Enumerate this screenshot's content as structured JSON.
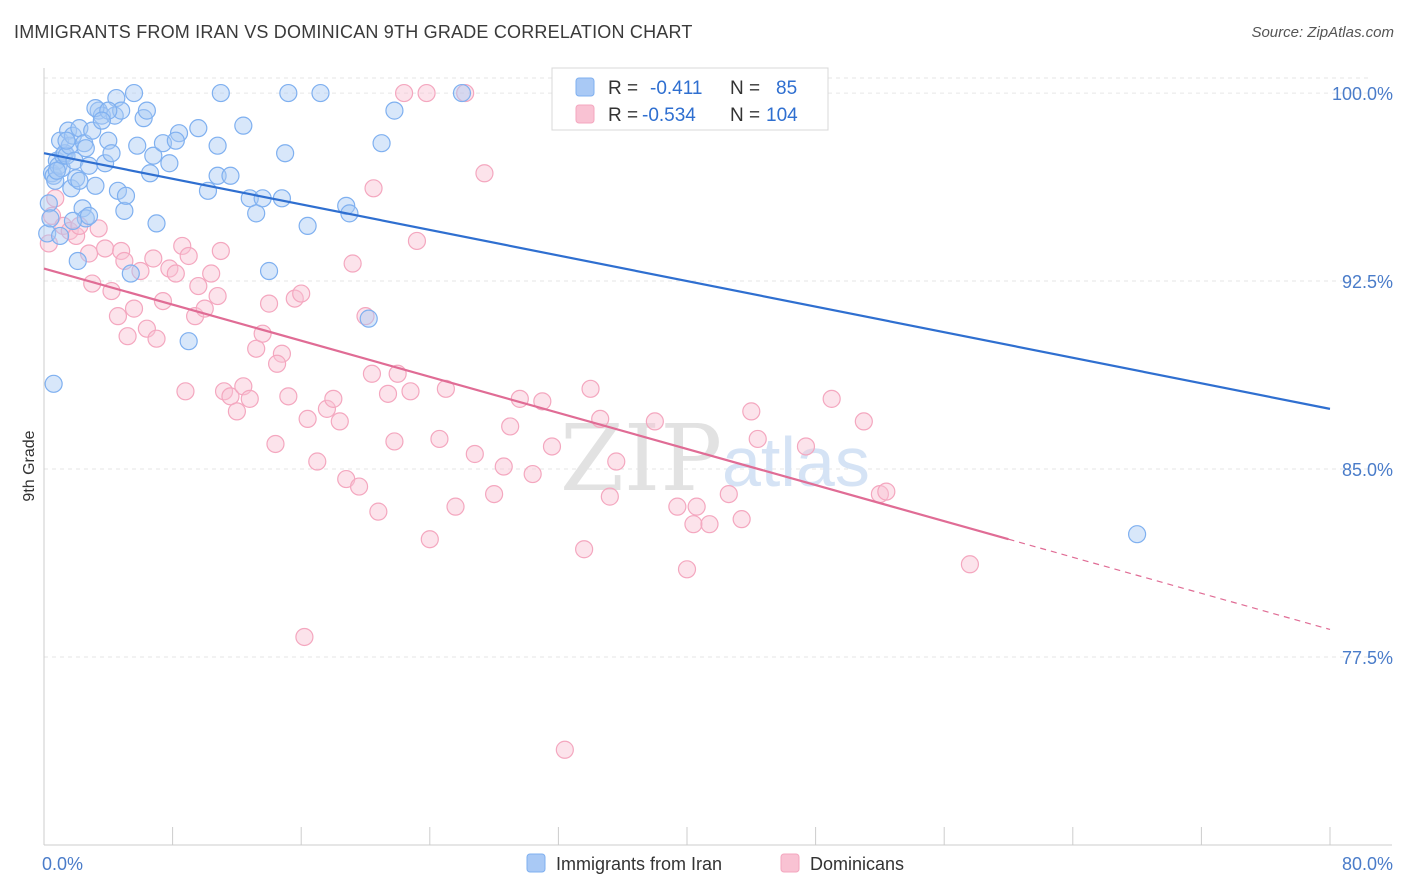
{
  "header": {
    "title": "IMMIGRANTS FROM IRAN VS DOMINICAN 9TH GRADE CORRELATION CHART",
    "source": "Source: ZipAtlas.com"
  },
  "watermark": {
    "zip": "ZIP",
    "atlas": "atlas"
  },
  "legend": {
    "rows": [
      {
        "r_label": "R =",
        "r_value": "-0.411",
        "n_label": "N =",
        "n_value": "85",
        "color": "#7fb0f0"
      },
      {
        "r_label": "R =",
        "r_value": "-0.534",
        "n_label": "N =",
        "n_value": "104",
        "color": "#f4a7bf"
      }
    ]
  },
  "bottom_legend": {
    "items": [
      {
        "label": "Immigrants from Iran",
        "color": "#a9c9f5"
      },
      {
        "label": "Dominicans",
        "color": "#f9c2d3"
      }
    ]
  },
  "chart_data": {
    "type": "scatter",
    "title": "IMMIGRANTS FROM IRAN VS DOMINICAN 9TH GRADE CORRELATION CHART",
    "xlabel": "",
    "ylabel": "9th Grade",
    "xlim": [
      0,
      80
    ],
    "ylim": [
      70.0,
      101.0
    ],
    "x_tick_labels": [
      "0.0%",
      "80.0%"
    ],
    "y_tick_labels": [
      "100.0%",
      "92.5%",
      "85.0%",
      "77.5%"
    ],
    "y_ticks": [
      100.0,
      92.5,
      85.0,
      77.5
    ],
    "grid": true,
    "series": [
      {
        "name": "Immigrants from Iran",
        "color": "#7fb0f0",
        "trend": {
          "x": [
            0,
            80
          ],
          "y": [
            97.6,
            87.4
          ]
        },
        "points": [
          [
            0.2,
            94.4
          ],
          [
            0.3,
            95.6
          ],
          [
            0.4,
            95.0
          ],
          [
            0.5,
            96.8
          ],
          [
            0.6,
            96.7
          ],
          [
            0.7,
            96.5
          ],
          [
            0.8,
            97.3
          ],
          [
            0.9,
            97.1
          ],
          [
            1.0,
            98.1
          ],
          [
            1.1,
            97.0
          ],
          [
            1.2,
            97.5
          ],
          [
            1.3,
            97.6
          ],
          [
            1.4,
            97.5
          ],
          [
            1.5,
            98.5
          ],
          [
            1.6,
            97.9
          ],
          [
            1.7,
            96.2
          ],
          [
            1.8,
            98.3
          ],
          [
            1.9,
            97.3
          ],
          [
            2.0,
            96.6
          ],
          [
            2.1,
            93.3
          ],
          [
            2.2,
            98.6
          ],
          [
            2.4,
            95.4
          ],
          [
            2.5,
            98.0
          ],
          [
            2.6,
            95.0
          ],
          [
            2.8,
            97.1
          ],
          [
            3.0,
            98.5
          ],
          [
            3.2,
            96.3
          ],
          [
            3.4,
            99.3
          ],
          [
            3.6,
            99.1
          ],
          [
            3.8,
            97.2
          ],
          [
            4.0,
            98.1
          ],
          [
            4.2,
            97.6
          ],
          [
            4.4,
            99.1
          ],
          [
            4.5,
            99.8
          ],
          [
            4.6,
            96.1
          ],
          [
            4.8,
            99.3
          ],
          [
            5.0,
            95.3
          ],
          [
            5.1,
            95.9
          ],
          [
            5.4,
            92.8
          ],
          [
            5.8,
            97.9
          ],
          [
            6.2,
            99.0
          ],
          [
            6.6,
            96.8
          ],
          [
            6.8,
            97.5
          ],
          [
            7.0,
            94.8
          ],
          [
            7.4,
            98.0
          ],
          [
            7.8,
            97.2
          ],
          [
            8.4,
            98.4
          ],
          [
            9.0,
            90.1
          ],
          [
            9.6,
            98.6
          ],
          [
            10.2,
            96.1
          ],
          [
            10.8,
            96.7
          ],
          [
            10.8,
            97.9
          ],
          [
            11.0,
            100.0
          ],
          [
            11.6,
            96.7
          ],
          [
            12.4,
            98.7
          ],
          [
            12.8,
            95.8
          ],
          [
            13.2,
            95.2
          ],
          [
            13.6,
            95.8
          ],
          [
            14.0,
            92.9
          ],
          [
            14.8,
            95.8
          ],
          [
            15.0,
            97.6
          ],
          [
            15.2,
            100.0
          ],
          [
            16.4,
            94.7
          ],
          [
            17.2,
            100.0
          ],
          [
            18.8,
            95.5
          ],
          [
            19.0,
            95.2
          ],
          [
            20.2,
            91.0
          ],
          [
            21.0,
            98.0
          ],
          [
            21.8,
            99.3
          ],
          [
            26.0,
            100.0
          ],
          [
            68.0,
            82.4
          ],
          [
            0.6,
            88.4
          ],
          [
            1.0,
            94.3
          ],
          [
            2.8,
            95.1
          ],
          [
            3.2,
            99.4
          ],
          [
            4.0,
            99.3
          ],
          [
            6.4,
            99.3
          ],
          [
            8.2,
            98.1
          ],
          [
            3.6,
            98.9
          ],
          [
            2.2,
            96.5
          ],
          [
            1.4,
            98.1
          ],
          [
            0.8,
            96.9
          ],
          [
            1.8,
            94.9
          ],
          [
            2.6,
            97.8
          ],
          [
            5.6,
            100.0
          ]
        ]
      },
      {
        "name": "Dominicans",
        "color": "#f4a7bf",
        "trend": {
          "x": [
            0,
            60
          ],
          "y": [
            93.0,
            82.2
          ]
        },
        "trend_dashed": {
          "x": [
            60,
            80
          ],
          "y": [
            82.2,
            78.6
          ]
        },
        "points": [
          [
            0.3,
            94.0
          ],
          [
            0.5,
            95.1
          ],
          [
            0.7,
            95.8
          ],
          [
            1.2,
            94.7
          ],
          [
            1.6,
            94.5
          ],
          [
            2.0,
            94.3
          ],
          [
            2.2,
            94.7
          ],
          [
            2.8,
            93.6
          ],
          [
            3.0,
            92.4
          ],
          [
            3.4,
            94.6
          ],
          [
            3.8,
            93.8
          ],
          [
            4.2,
            92.1
          ],
          [
            4.6,
            91.1
          ],
          [
            4.8,
            93.7
          ],
          [
            5.2,
            90.3
          ],
          [
            5.6,
            91.4
          ],
          [
            6.0,
            92.9
          ],
          [
            6.4,
            90.6
          ],
          [
            6.8,
            93.4
          ],
          [
            7.0,
            90.2
          ],
          [
            7.4,
            91.7
          ],
          [
            7.8,
            93.0
          ],
          [
            8.2,
            92.8
          ],
          [
            8.6,
            93.9
          ],
          [
            9.0,
            93.5
          ],
          [
            9.4,
            91.1
          ],
          [
            9.6,
            92.3
          ],
          [
            10.0,
            91.4
          ],
          [
            10.4,
            92.8
          ],
          [
            10.8,
            91.9
          ],
          [
            11.2,
            88.1
          ],
          [
            11.6,
            87.9
          ],
          [
            12.0,
            87.3
          ],
          [
            12.4,
            88.3
          ],
          [
            12.8,
            87.8
          ],
          [
            13.2,
            89.8
          ],
          [
            13.6,
            90.4
          ],
          [
            14.0,
            91.6
          ],
          [
            14.4,
            86.0
          ],
          [
            14.8,
            89.6
          ],
          [
            15.2,
            87.9
          ],
          [
            15.6,
            91.8
          ],
          [
            16.0,
            92.0
          ],
          [
            16.4,
            87.0
          ],
          [
            17.0,
            85.3
          ],
          [
            17.6,
            87.4
          ],
          [
            18.0,
            87.8
          ],
          [
            18.4,
            86.9
          ],
          [
            18.8,
            84.6
          ],
          [
            19.2,
            93.2
          ],
          [
            19.6,
            84.3
          ],
          [
            20.0,
            91.1
          ],
          [
            20.4,
            88.8
          ],
          [
            20.8,
            83.3
          ],
          [
            21.4,
            88.0
          ],
          [
            21.8,
            86.1
          ],
          [
            22.0,
            88.8
          ],
          [
            22.4,
            100.0
          ],
          [
            22.8,
            88.1
          ],
          [
            23.2,
            94.1
          ],
          [
            23.8,
            100.0
          ],
          [
            24.0,
            82.2
          ],
          [
            24.6,
            86.2
          ],
          [
            25.0,
            88.2
          ],
          [
            25.6,
            83.5
          ],
          [
            26.2,
            100.0
          ],
          [
            26.8,
            85.6
          ],
          [
            27.4,
            96.8
          ],
          [
            28.0,
            84.0
          ],
          [
            28.6,
            85.1
          ],
          [
            29.0,
            86.7
          ],
          [
            29.6,
            87.8
          ],
          [
            30.4,
            84.8
          ],
          [
            31.0,
            87.7
          ],
          [
            31.6,
            85.9
          ],
          [
            32.4,
            73.8
          ],
          [
            33.0,
            100.0
          ],
          [
            33.6,
            81.8
          ],
          [
            34.0,
            88.2
          ],
          [
            34.6,
            87.0
          ],
          [
            35.2,
            83.9
          ],
          [
            35.6,
            85.3
          ],
          [
            38.0,
            86.9
          ],
          [
            39.4,
            83.5
          ],
          [
            40.0,
            81.0
          ],
          [
            40.4,
            82.8
          ],
          [
            40.6,
            83.5
          ],
          [
            41.4,
            82.8
          ],
          [
            42.6,
            84.0
          ],
          [
            43.4,
            83.0
          ],
          [
            44.0,
            87.3
          ],
          [
            44.4,
            86.2
          ],
          [
            47.4,
            85.9
          ],
          [
            49.0,
            87.8
          ],
          [
            51.0,
            86.9
          ],
          [
            52.0,
            84.0
          ],
          [
            52.4,
            84.1
          ],
          [
            57.6,
            81.2
          ],
          [
            16.2,
            78.3
          ],
          [
            20.5,
            96.2
          ],
          [
            14.5,
            89.2
          ],
          [
            8.8,
            88.1
          ],
          [
            11.0,
            93.7
          ],
          [
            5.0,
            93.3
          ]
        ]
      }
    ]
  }
}
